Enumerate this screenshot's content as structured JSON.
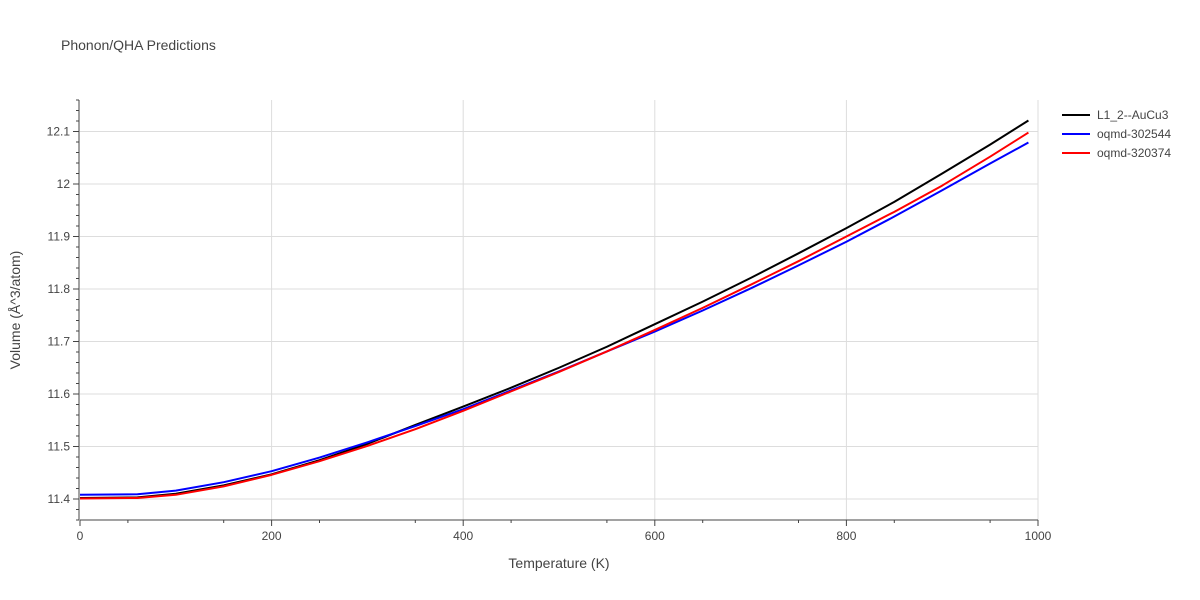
{
  "chart_data": {
    "type": "line",
    "title": "Phonon/QHA Predictions",
    "xlabel": "Temperature (K)",
    "ylabel": "Volume (Å^3/atom)",
    "xlim": [
      0,
      1000
    ],
    "ylim": [
      11.36,
      12.16
    ],
    "x_ticks": [
      0,
      200,
      400,
      600,
      800,
      1000
    ],
    "y_ticks": [
      11.4,
      11.5,
      11.6,
      11.7,
      11.8,
      11.9,
      12,
      12.1
    ],
    "x_tick_labels": [
      "0",
      "200",
      "400",
      "600",
      "800",
      "1000"
    ],
    "y_tick_labels": [
      "11.4",
      "11.5",
      "11.6",
      "11.7",
      "11.8",
      "11.9",
      "12",
      "12.1"
    ],
    "grid": true,
    "legend_position": "top-right",
    "series": [
      {
        "name": "L1_2--AuCu3",
        "color": "#000000",
        "x": [
          0,
          60,
          100,
          150,
          200,
          250,
          300,
          350,
          400,
          450,
          500,
          550,
          600,
          650,
          700,
          750,
          800,
          850,
          900,
          950,
          990
        ],
        "y": [
          11.402,
          11.403,
          11.41,
          11.426,
          11.447,
          11.474,
          11.505,
          11.541,
          11.576,
          11.612,
          11.65,
          11.69,
          11.733,
          11.776,
          11.821,
          11.868,
          11.916,
          11.966,
          12.02,
          12.075,
          12.121
        ]
      },
      {
        "name": "oqmd-302544",
        "color": "#0000ff",
        "x": [
          0,
          60,
          100,
          150,
          200,
          250,
          300,
          350,
          400,
          450,
          500,
          550,
          600,
          650,
          700,
          750,
          800,
          850,
          900,
          950,
          990
        ],
        "y": [
          11.408,
          11.409,
          11.416,
          11.432,
          11.453,
          11.479,
          11.508,
          11.539,
          11.571,
          11.607,
          11.643,
          11.681,
          11.719,
          11.759,
          11.801,
          11.845,
          11.89,
          11.938,
          11.988,
          12.039,
          12.079
        ]
      },
      {
        "name": "oqmd-320374",
        "color": "#ff0000",
        "x": [
          0,
          60,
          100,
          150,
          200,
          250,
          300,
          350,
          400,
          450,
          500,
          550,
          600,
          650,
          700,
          750,
          800,
          850,
          900,
          950,
          990
        ],
        "y": [
          11.401,
          11.402,
          11.408,
          11.424,
          11.446,
          11.472,
          11.501,
          11.533,
          11.568,
          11.605,
          11.642,
          11.681,
          11.722,
          11.764,
          11.808,
          11.853,
          11.9,
          11.947,
          11.997,
          12.052,
          12.098
        ]
      }
    ]
  }
}
